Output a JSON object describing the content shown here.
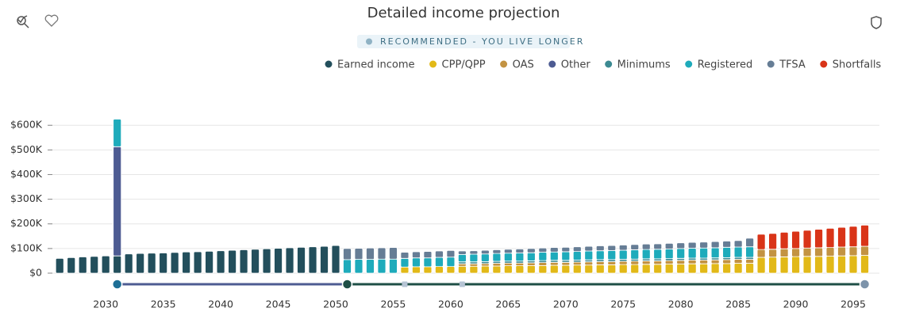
{
  "chart_data": {
    "type": "bar",
    "stacked": true,
    "title": "Detailed income projection",
    "subtitle": "RECOMMENDED - YOU LIVE LONGER",
    "x": [
      2026,
      2027,
      2028,
      2029,
      2030,
      2031,
      2032,
      2033,
      2034,
      2035,
      2036,
      2037,
      2038,
      2039,
      2040,
      2041,
      2042,
      2043,
      2044,
      2045,
      2046,
      2047,
      2048,
      2049,
      2050,
      2051,
      2052,
      2053,
      2054,
      2055,
      2056,
      2057,
      2058,
      2059,
      2060,
      2061,
      2062,
      2063,
      2064,
      2065,
      2066,
      2067,
      2068,
      2069,
      2070,
      2071,
      2072,
      2073,
      2074,
      2075,
      2076,
      2077,
      2078,
      2079,
      2080,
      2081,
      2082,
      2083,
      2084,
      2085,
      2086,
      2087,
      2088,
      2089,
      2090,
      2091,
      2092,
      2093,
      2094,
      2095,
      2096
    ],
    "xlim": [
      2025.5,
      2097
    ],
    "xticks": [
      2030,
      2035,
      2040,
      2045,
      2050,
      2055,
      2060,
      2065,
      2070,
      2075,
      2080,
      2085,
      2090,
      2095
    ],
    "ylim": [
      0,
      620000
    ],
    "yticks": [
      {
        "value": 0,
        "label": "$0"
      },
      {
        "value": 100000,
        "label": "$100K"
      },
      {
        "value": 200000,
        "label": "$200K"
      },
      {
        "value": 300000,
        "label": "$300K"
      },
      {
        "value": 400000,
        "label": "$400K"
      },
      {
        "value": 500000,
        "label": "$500K"
      },
      {
        "value": 600000,
        "label": "$600K"
      }
    ],
    "grid": true,
    "legend": "top-right",
    "milestones": [
      2031,
      2051,
      2056,
      2061,
      2096
    ],
    "series": [
      {
        "name": "Earned income",
        "color": "#234f5c",
        "values": [
          60000,
          63000,
          66000,
          68000,
          70000,
          70000,
          78000,
          80000,
          81000,
          82000,
          84000,
          86000,
          87000,
          89000,
          91000,
          93000,
          95000,
          97000,
          99000,
          101000,
          103000,
          105000,
          107000,
          109000,
          112000,
          null,
          null,
          null,
          null,
          null,
          null,
          null,
          null,
          null,
          null,
          null,
          null,
          null,
          null,
          null,
          null,
          null,
          null,
          null,
          null,
          null,
          null,
          null,
          null,
          null,
          null,
          null,
          null,
          null,
          null,
          null,
          null,
          null,
          null,
          null,
          null,
          null,
          null,
          null,
          null,
          null,
          null,
          null,
          null,
          null,
          null
        ]
      },
      {
        "name": "CPP/QPP",
        "color": "#e2b918",
        "values": [
          null,
          null,
          null,
          null,
          null,
          null,
          null,
          null,
          null,
          null,
          null,
          null,
          null,
          null,
          null,
          null,
          null,
          null,
          null,
          null,
          null,
          null,
          null,
          null,
          null,
          null,
          null,
          null,
          null,
          null,
          25000,
          26000,
          26000,
          27000,
          27000,
          28000,
          28000,
          29000,
          29000,
          30000,
          30000,
          31000,
          31000,
          32000,
          32000,
          33000,
          33000,
          34000,
          34000,
          35000,
          35000,
          36000,
          36000,
          37000,
          37000,
          38000,
          38000,
          39000,
          39000,
          40000,
          40000,
          64000,
          65000,
          66000,
          67000,
          68000,
          68000,
          69000,
          70000,
          71000,
          72000
        ]
      },
      {
        "name": "OAS",
        "color": "#c39342",
        "values": [
          null,
          null,
          null,
          null,
          null,
          null,
          null,
          null,
          null,
          null,
          null,
          null,
          null,
          null,
          null,
          null,
          null,
          null,
          null,
          null,
          null,
          null,
          null,
          null,
          null,
          null,
          null,
          null,
          null,
          null,
          null,
          null,
          null,
          null,
          null,
          10000,
          10000,
          10000,
          11000,
          11000,
          11000,
          11000,
          12000,
          12000,
          12000,
          12000,
          13000,
          13000,
          13000,
          13000,
          14000,
          14000,
          14000,
          14000,
          15000,
          15000,
          15000,
          15000,
          16000,
          16000,
          16000,
          32000,
          32000,
          33000,
          33000,
          34000,
          35000,
          35000,
          36000,
          36000,
          37000
        ]
      },
      {
        "name": "Other",
        "color": "#4d5b92",
        "values": [
          null,
          null,
          null,
          null,
          null,
          443000,
          null,
          null,
          null,
          null,
          null,
          null,
          null,
          null,
          null,
          null,
          null,
          null,
          null,
          null,
          null,
          null,
          null,
          null,
          null,
          null,
          null,
          null,
          null,
          null,
          null,
          null,
          null,
          null,
          null,
          null,
          null,
          null,
          null,
          null,
          null,
          null,
          null,
          null,
          null,
          null,
          null,
          null,
          null,
          null,
          null,
          null,
          null,
          null,
          null,
          null,
          null,
          null,
          null,
          null,
          null,
          null,
          null,
          null,
          null,
          null,
          null,
          null,
          null,
          null,
          null
        ]
      },
      {
        "name": "Minimums",
        "color": "#3c8a92",
        "values": [
          null,
          null,
          null,
          null,
          null,
          null,
          null,
          null,
          null,
          null,
          null,
          null,
          null,
          null,
          null,
          null,
          null,
          null,
          null,
          null,
          null,
          null,
          null,
          null,
          null,
          null,
          null,
          null,
          null,
          null,
          null,
          null,
          null,
          null,
          null,
          8000,
          8000,
          8000,
          8000,
          8000,
          8000,
          8000,
          8000,
          8000,
          8000,
          8000,
          8000,
          8000,
          8000,
          8000,
          8000,
          8000,
          8000,
          8000,
          8000,
          8000,
          8000,
          8000,
          8000,
          8000,
          8000,
          null,
          null,
          null,
          null,
          null,
          null,
          null,
          null,
          null,
          null
        ]
      },
      {
        "name": "Registered",
        "color": "#1eabbb",
        "values": [
          null,
          null,
          null,
          null,
          null,
          112000,
          null,
          null,
          null,
          null,
          null,
          null,
          null,
          null,
          null,
          null,
          null,
          null,
          null,
          null,
          null,
          null,
          null,
          null,
          null,
          55000,
          56000,
          56000,
          57000,
          57000,
          35000,
          36000,
          36000,
          37000,
          38000,
          30000,
          31000,
          31000,
          32000,
          32000,
          33000,
          33000,
          34000,
          34000,
          35000,
          35000,
          36000,
          36000,
          37000,
          37000,
          38000,
          38000,
          39000,
          39000,
          40000,
          40000,
          41000,
          41000,
          42000,
          42000,
          43000,
          null,
          null,
          null,
          null,
          null,
          null,
          null,
          null,
          null,
          null
        ]
      },
      {
        "name": "TFSA",
        "color": "#667d95",
        "values": [
          null,
          null,
          null,
          null,
          null,
          null,
          null,
          null,
          null,
          null,
          null,
          null,
          null,
          null,
          null,
          null,
          null,
          null,
          null,
          null,
          null,
          null,
          null,
          null,
          null,
          45000,
          45000,
          46000,
          46000,
          47000,
          25000,
          25000,
          26000,
          26000,
          27000,
          14000,
          14000,
          15000,
          15000,
          16000,
          16000,
          17000,
          17000,
          18000,
          18000,
          19000,
          19000,
          20000,
          20000,
          21000,
          21000,
          22000,
          22000,
          23000,
          23000,
          24000,
          24000,
          25000,
          25000,
          26000,
          35000,
          null,
          null,
          null,
          null,
          null,
          null,
          null,
          null,
          null,
          null
        ]
      },
      {
        "name": "Shortfalls",
        "color": "#d93418",
        "values": [
          null,
          null,
          null,
          null,
          null,
          null,
          null,
          null,
          null,
          null,
          null,
          null,
          null,
          null,
          null,
          null,
          null,
          null,
          null,
          null,
          null,
          null,
          null,
          null,
          null,
          null,
          null,
          null,
          null,
          null,
          null,
          null,
          null,
          null,
          null,
          null,
          null,
          null,
          null,
          null,
          null,
          null,
          null,
          null,
          null,
          null,
          null,
          null,
          null,
          null,
          null,
          null,
          null,
          null,
          null,
          null,
          null,
          null,
          null,
          null,
          null,
          62000,
          64000,
          67000,
          70000,
          72000,
          75000,
          78000,
          80000,
          83000,
          86000
        ]
      }
    ]
  }
}
